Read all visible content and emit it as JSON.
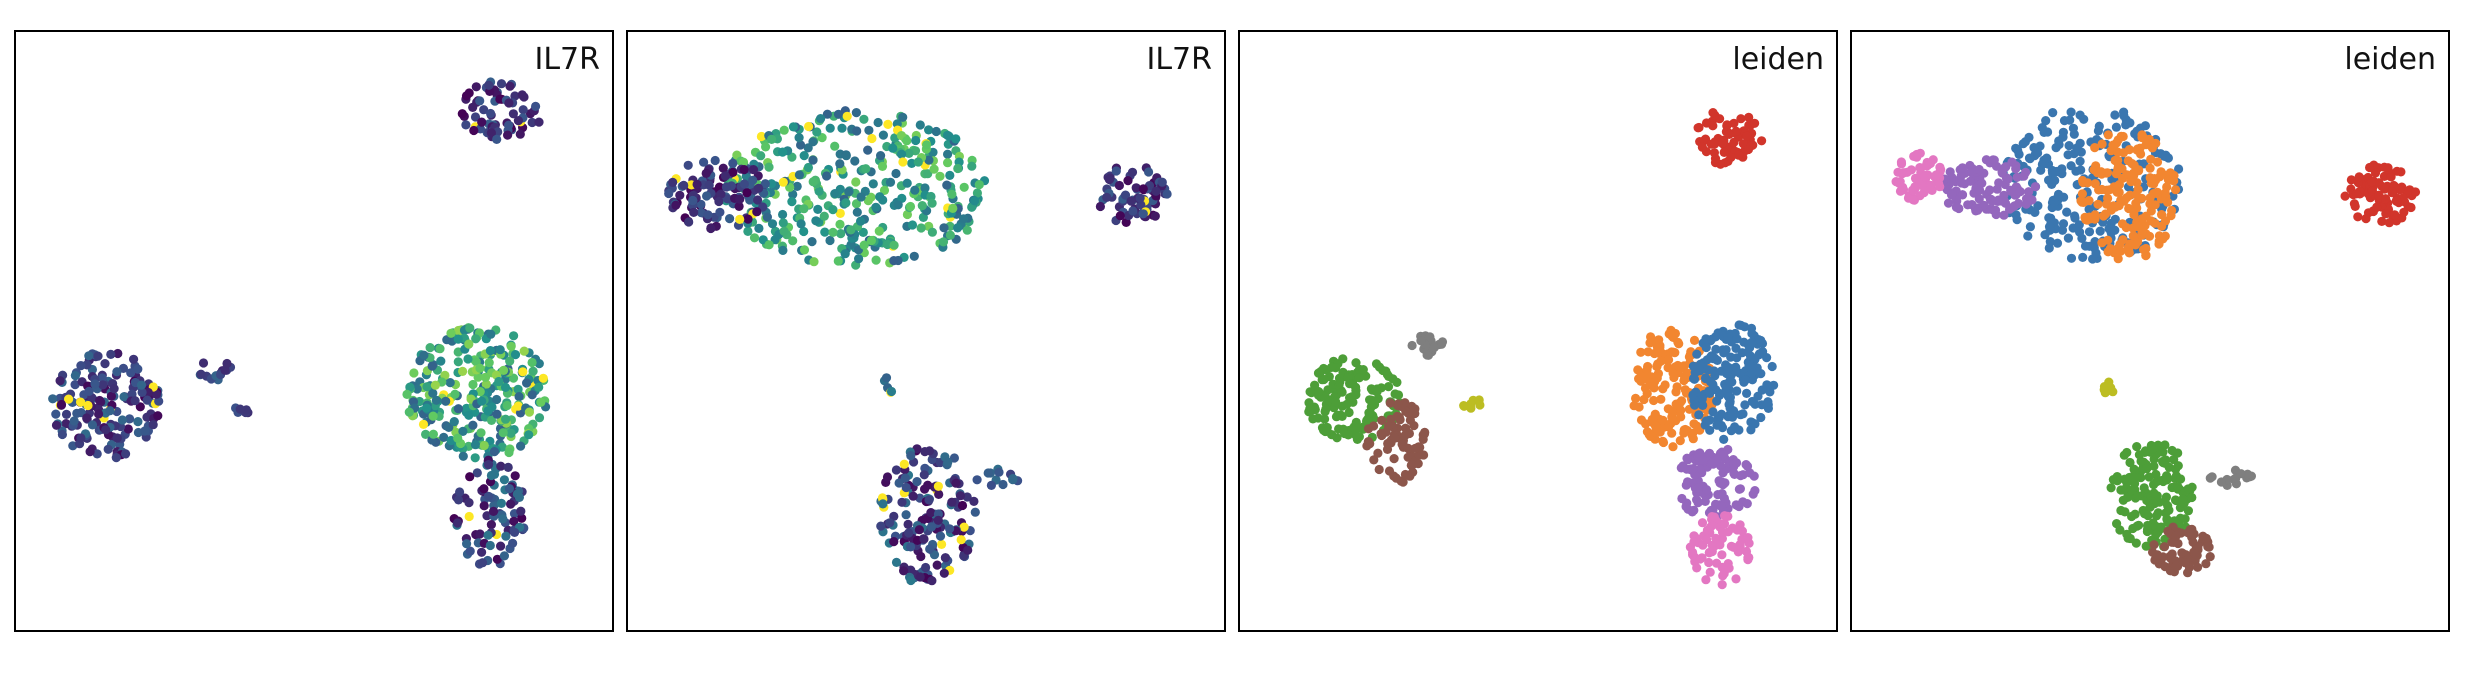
{
  "figure": {
    "panels": [
      {
        "title": "IL7R",
        "color_by": "expression"
      },
      {
        "title": "IL7R",
        "color_by": "expression"
      },
      {
        "title": "leiden",
        "color_by": "category"
      },
      {
        "title": "leiden",
        "color_by": "category"
      }
    ]
  },
  "chart_data": [
    {
      "type": "scatter",
      "title": "IL7R",
      "colormap": "viridis",
      "xlim": [
        0,
        100
      ],
      "ylim": [
        0,
        100
      ],
      "grid": false,
      "clusters": [
        {
          "cx": 81,
          "cy": 87,
          "rx": 7,
          "ry": 5,
          "n": 70,
          "level": [
            0.0,
            0.3
          ]
        },
        {
          "cx": 15,
          "cy": 38,
          "rx": 9,
          "ry": 9,
          "n": 170,
          "level": [
            0.0,
            0.35
          ]
        },
        {
          "cx": 77,
          "cy": 40,
          "rx": 12,
          "ry": 11,
          "n": 280,
          "level": [
            0.3,
            0.85
          ]
        },
        {
          "cx": 79,
          "cy": 20,
          "rx": 6,
          "ry": 9,
          "n": 90,
          "level": [
            0.0,
            0.4
          ]
        },
        {
          "cx": 33,
          "cy": 44,
          "rx": 3,
          "ry": 2,
          "n": 14,
          "level": [
            0.1,
            0.35
          ]
        },
        {
          "cx": 38,
          "cy": 37,
          "rx": 2,
          "ry": 1,
          "n": 6,
          "level": [
            0.1,
            0.35
          ]
        }
      ]
    },
    {
      "type": "scatter",
      "title": "IL7R",
      "colormap": "viridis",
      "xlim": [
        0,
        100
      ],
      "ylim": [
        0,
        100
      ],
      "grid": false,
      "clusters": [
        {
          "cx": 38,
          "cy": 74,
          "rx": 22,
          "ry": 13,
          "n": 380,
          "level": [
            0.3,
            0.8
          ]
        },
        {
          "cx": 15,
          "cy": 73,
          "rx": 9,
          "ry": 6,
          "n": 110,
          "level": [
            0.0,
            0.3
          ]
        },
        {
          "cx": 84,
          "cy": 73,
          "rx": 6,
          "ry": 5,
          "n": 70,
          "level": [
            0.0,
            0.3
          ]
        },
        {
          "cx": 50,
          "cy": 20,
          "rx": 8,
          "ry": 12,
          "n": 170,
          "level": [
            0.0,
            0.4
          ]
        },
        {
          "cx": 62,
          "cy": 26,
          "rx": 4,
          "ry": 1.5,
          "n": 12,
          "level": [
            0.2,
            0.4
          ]
        },
        {
          "cx": 43,
          "cy": 41,
          "rx": 1,
          "ry": 2,
          "n": 5,
          "level": [
            0.3,
            0.45
          ]
        }
      ]
    },
    {
      "type": "scatter",
      "title": "leiden",
      "xlim": [
        0,
        100
      ],
      "ylim": [
        0,
        100
      ],
      "grid": false,
      "clusters": [
        {
          "cx": 81,
          "cy": 82,
          "rx": 6,
          "ry": 5,
          "n": 70,
          "color": "#d1352b"
        },
        {
          "cx": 19,
          "cy": 39,
          "rx": 8,
          "ry": 7,
          "n": 150,
          "color": "#4d9e38"
        },
        {
          "cx": 26,
          "cy": 32,
          "rx": 5,
          "ry": 7,
          "n": 80,
          "color": "#8c564b"
        },
        {
          "cx": 31,
          "cy": 48,
          "rx": 3,
          "ry": 2,
          "n": 16,
          "color": "#7f7f7f"
        },
        {
          "cx": 39,
          "cy": 38,
          "rx": 2,
          "ry": 1,
          "n": 8,
          "color": "#bcbd22"
        },
        {
          "cx": 72,
          "cy": 41,
          "rx": 7,
          "ry": 10,
          "n": 170,
          "color": "#f28630"
        },
        {
          "cx": 82,
          "cy": 42,
          "rx": 7,
          "ry": 10,
          "n": 170,
          "color": "#3a76af"
        },
        {
          "cx": 79,
          "cy": 25,
          "rx": 7,
          "ry": 6,
          "n": 110,
          "color": "#9467bd"
        },
        {
          "cx": 80,
          "cy": 14,
          "rx": 5,
          "ry": 6,
          "n": 70,
          "color": "#e377c2"
        }
      ]
    },
    {
      "type": "scatter",
      "title": "leiden",
      "xlim": [
        0,
        100
      ],
      "ylim": [
        0,
        100
      ],
      "grid": false,
      "clusters": [
        {
          "cx": 40,
          "cy": 75,
          "rx": 15,
          "ry": 13,
          "n": 240,
          "color": "#3a76af"
        },
        {
          "cx": 46,
          "cy": 73,
          "rx": 8,
          "ry": 11,
          "n": 170,
          "color": "#f28630"
        },
        {
          "cx": 23,
          "cy": 74,
          "rx": 8,
          "ry": 5,
          "n": 110,
          "color": "#9467bd"
        },
        {
          "cx": 11,
          "cy": 76,
          "rx": 4,
          "ry": 4,
          "n": 60,
          "color": "#e377c2"
        },
        {
          "cx": 88,
          "cy": 73,
          "rx": 6,
          "ry": 5,
          "n": 90,
          "color": "#d1352b"
        },
        {
          "cx": 50,
          "cy": 23,
          "rx": 7,
          "ry": 9,
          "n": 160,
          "color": "#4d9e38"
        },
        {
          "cx": 55,
          "cy": 14,
          "rx": 5,
          "ry": 4,
          "n": 70,
          "color": "#8c564b"
        },
        {
          "cx": 63,
          "cy": 26,
          "rx": 4,
          "ry": 1.5,
          "n": 14,
          "color": "#7f7f7f"
        },
        {
          "cx": 43,
          "cy": 41,
          "rx": 1,
          "ry": 2,
          "n": 6,
          "color": "#bcbd22"
        }
      ]
    }
  ]
}
